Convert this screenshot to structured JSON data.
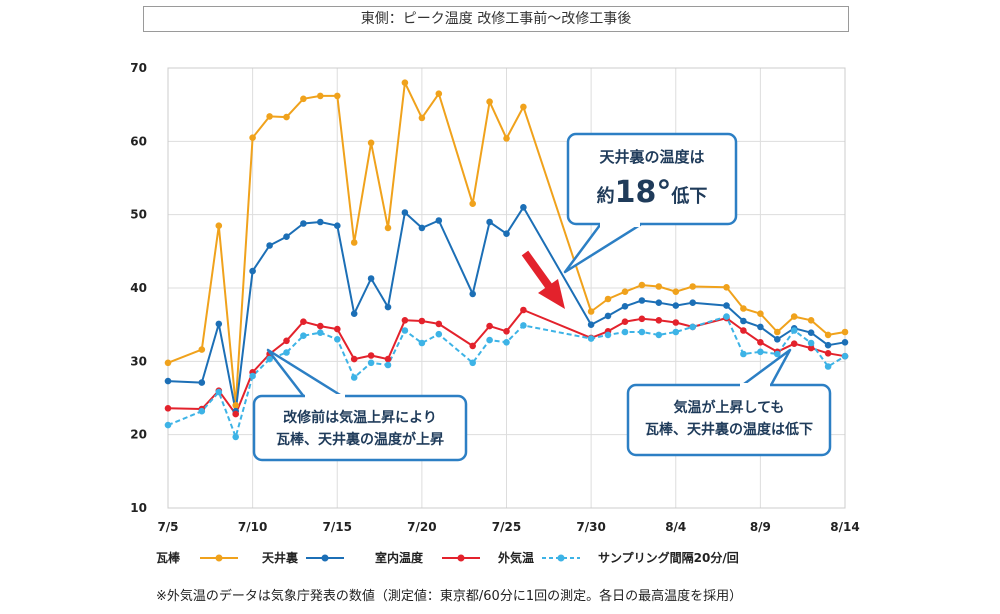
{
  "chart_data": {
    "type": "line",
    "title": "東側：ピーク温度 改修工事前～改修工事後",
    "ylim": [
      10,
      70
    ],
    "yticks": [
      "10",
      "20",
      "30",
      "40",
      "50",
      "60",
      "70"
    ],
    "xlim": [
      0,
      40
    ],
    "xticks": [
      {
        "x": 0,
        "label": "7/5"
      },
      {
        "x": 5,
        "label": "7/10"
      },
      {
        "x": 10,
        "label": "7/15"
      },
      {
        "x": 15,
        "label": "7/20"
      },
      {
        "x": 20,
        "label": "7/25"
      },
      {
        "x": 25,
        "label": "7/30"
      },
      {
        "x": 30,
        "label": "8/4"
      },
      {
        "x": 35,
        "label": "8/9"
      },
      {
        "x": 40,
        "label": "8/14"
      }
    ],
    "grid": true,
    "series": [
      {
        "name": "瓦棒",
        "color": "#f0a21c",
        "dashed": false,
        "points": [
          [
            0,
            29.8
          ],
          [
            2,
            31.6
          ],
          [
            3,
            48.5
          ],
          [
            4,
            24.0
          ],
          [
            5,
            60.5
          ],
          [
            6,
            63.4
          ],
          [
            7,
            63.3
          ],
          [
            8,
            65.8
          ],
          [
            9,
            66.2
          ],
          [
            10,
            66.2
          ],
          [
            11,
            46.2
          ],
          [
            12,
            59.8
          ],
          [
            13,
            48.2
          ],
          [
            14,
            68.0
          ],
          [
            15,
            63.2
          ],
          [
            16,
            66.5
          ],
          [
            18,
            51.5
          ],
          [
            19,
            65.4
          ],
          [
            20,
            60.4
          ],
          [
            21,
            64.7
          ],
          [
            25,
            36.8
          ],
          [
            26,
            38.5
          ],
          [
            27,
            39.5
          ],
          [
            28,
            40.4
          ],
          [
            29,
            40.2
          ],
          [
            30,
            39.5
          ],
          [
            31,
            40.2
          ],
          [
            33,
            40.1
          ],
          [
            34,
            37.2
          ],
          [
            35,
            36.5
          ],
          [
            36,
            34.0
          ],
          [
            37,
            36.1
          ],
          [
            38,
            35.6
          ],
          [
            39,
            33.6
          ],
          [
            40,
            34.0
          ]
        ]
      },
      {
        "name": "天井裏",
        "color": "#1c6fb6",
        "dashed": false,
        "points": [
          [
            0,
            27.3
          ],
          [
            2,
            27.1
          ],
          [
            3,
            35.1
          ],
          [
            4,
            23.2
          ],
          [
            5,
            42.3
          ],
          [
            6,
            45.8
          ],
          [
            7,
            47.0
          ],
          [
            8,
            48.8
          ],
          [
            9,
            49.0
          ],
          [
            10,
            48.5
          ],
          [
            11,
            36.5
          ],
          [
            12,
            41.3
          ],
          [
            13,
            37.4
          ],
          [
            14,
            50.3
          ],
          [
            15,
            48.2
          ],
          [
            16,
            49.2
          ],
          [
            18,
            39.2
          ],
          [
            19,
            49.0
          ],
          [
            20,
            47.4
          ],
          [
            21,
            51.0
          ],
          [
            25,
            35.0
          ],
          [
            26,
            36.2
          ],
          [
            27,
            37.5
          ],
          [
            28,
            38.3
          ],
          [
            29,
            38.0
          ],
          [
            30,
            37.6
          ],
          [
            31,
            38.0
          ],
          [
            33,
            37.6
          ],
          [
            34,
            35.5
          ],
          [
            35,
            34.7
          ],
          [
            36,
            33.0
          ],
          [
            37,
            34.5
          ],
          [
            38,
            33.9
          ],
          [
            39,
            32.2
          ],
          [
            40,
            32.6
          ]
        ]
      },
      {
        "name": "室内温度",
        "color": "#e3222c",
        "dashed": false,
        "points": [
          [
            0,
            23.6
          ],
          [
            2,
            23.5
          ],
          [
            3,
            26.0
          ],
          [
            4,
            22.8
          ],
          [
            5,
            28.5
          ],
          [
            6,
            31.0
          ],
          [
            7,
            32.8
          ],
          [
            8,
            35.4
          ],
          [
            9,
            34.8
          ],
          [
            10,
            34.4
          ],
          [
            11,
            30.3
          ],
          [
            12,
            30.8
          ],
          [
            13,
            30.3
          ],
          [
            14,
            35.6
          ],
          [
            15,
            35.5
          ],
          [
            16,
            35.1
          ],
          [
            18,
            32.1
          ],
          [
            19,
            34.8
          ],
          [
            20,
            34.1
          ],
          [
            21,
            37.0
          ],
          [
            25,
            33.2
          ],
          [
            26,
            34.1
          ],
          [
            27,
            35.4
          ],
          [
            28,
            35.8
          ],
          [
            29,
            35.6
          ],
          [
            30,
            35.3
          ],
          [
            31,
            34.7
          ],
          [
            33,
            35.9
          ],
          [
            34,
            34.2
          ],
          [
            35,
            32.6
          ],
          [
            36,
            31.3
          ],
          [
            37,
            32.4
          ],
          [
            38,
            31.8
          ],
          [
            39,
            31.1
          ],
          [
            40,
            30.7
          ]
        ]
      },
      {
        "name": "外気温",
        "color": "#3db3e6",
        "dashed": true,
        "points": [
          [
            0,
            21.3
          ],
          [
            2,
            23.2
          ],
          [
            3,
            25.8
          ],
          [
            4,
            19.7
          ],
          [
            5,
            28.0
          ],
          [
            6,
            30.3
          ],
          [
            7,
            31.2
          ],
          [
            8,
            33.5
          ],
          [
            9,
            33.9
          ],
          [
            10,
            33.0
          ],
          [
            11,
            27.8
          ],
          [
            12,
            29.8
          ],
          [
            13,
            29.5
          ],
          [
            14,
            34.2
          ],
          [
            15,
            32.5
          ],
          [
            16,
            33.7
          ],
          [
            18,
            29.8
          ],
          [
            19,
            32.9
          ],
          [
            20,
            32.6
          ],
          [
            21,
            34.9
          ],
          [
            25,
            33.1
          ],
          [
            26,
            33.6
          ],
          [
            27,
            34.0
          ],
          [
            28,
            34.0
          ],
          [
            29,
            33.6
          ],
          [
            30,
            34.0
          ],
          [
            31,
            34.7
          ],
          [
            33,
            36.1
          ],
          [
            34,
            31.0
          ],
          [
            35,
            31.3
          ],
          [
            36,
            31.0
          ],
          [
            37,
            34.2
          ],
          [
            38,
            32.5
          ],
          [
            39,
            29.3
          ],
          [
            40,
            30.7
          ]
        ]
      }
    ],
    "legend": {
      "items": [
        "瓦棒",
        "天井裏",
        "室内温度",
        "外気温"
      ],
      "sampling_note": "サンプリング間隔20分/回",
      "position": "bottom"
    },
    "annotations": {
      "callout_top_line1": "天井裏の温度は",
      "callout_top_line2_prefix": "約",
      "callout_top_line2_value": "18°",
      "callout_top_line2_suffix": "低下",
      "callout_left_line1": "改修前は気温上昇により",
      "callout_left_line2": "瓦棒、天井裏の温度が上昇",
      "callout_right_line1": "気温が上昇しても",
      "callout_right_line2": "瓦棒、天井裏の温度は低下"
    },
    "footnote": "※外気温のデータは気象庁発表の数値（測定値：東京都/60分に1回の測定。各日の最高温度を採用）"
  }
}
